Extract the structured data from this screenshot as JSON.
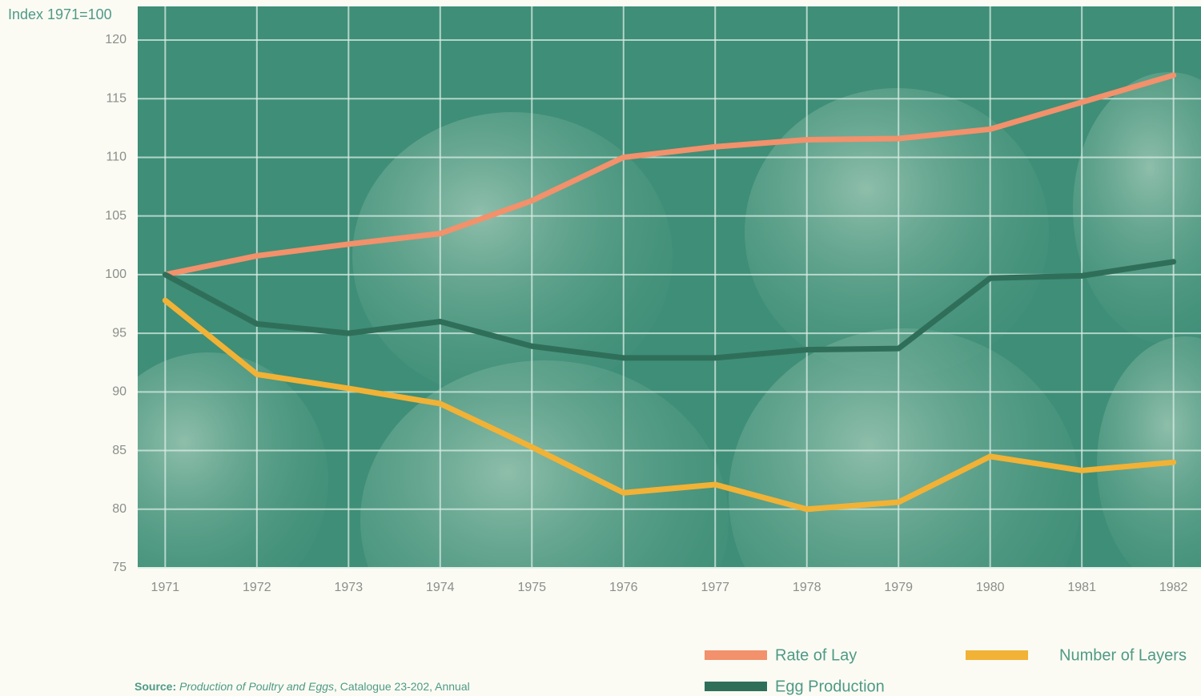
{
  "chart_data": {
    "type": "line",
    "y_label": "Index 1971=100",
    "x": [
      1971,
      1972,
      1973,
      1974,
      1975,
      1976,
      1977,
      1978,
      1979,
      1980,
      1981,
      1982
    ],
    "xlim": [
      1970.7,
      1982.3
    ],
    "xticks": [
      1971,
      1972,
      1973,
      1974,
      1975,
      1976,
      1977,
      1978,
      1979,
      1980,
      1981,
      1982
    ],
    "ylim": [
      75,
      120
    ],
    "yticks": [
      75,
      80,
      85,
      90,
      95,
      100,
      105,
      110,
      115,
      120
    ],
    "grid": true,
    "series": [
      {
        "name": "Rate of Lay",
        "color": "#f2916b",
        "values": [
          100,
          101.6,
          102.6,
          103.5,
          106.3,
          110,
          110.9,
          111.5,
          111.6,
          112.4,
          114.7,
          117
        ]
      },
      {
        "name": "Number of Layers",
        "color": "#f1b236",
        "values": [
          97.8,
          91.5,
          90.3,
          89,
          85.3,
          81.4,
          82.1,
          80,
          80.6,
          84.5,
          83.3,
          84
        ]
      },
      {
        "name": "Egg Production",
        "color": "#2f6f5a",
        "values": [
          100,
          95.8,
          95,
          96,
          93.9,
          92.9,
          92.9,
          93.6,
          93.7,
          99.7,
          99.9,
          101.1
        ]
      }
    ],
    "source": {
      "label": "Source:",
      "title": "Production of Poultry and Eggs",
      "rest": ", Catalogue 23-202, Annual"
    }
  }
}
